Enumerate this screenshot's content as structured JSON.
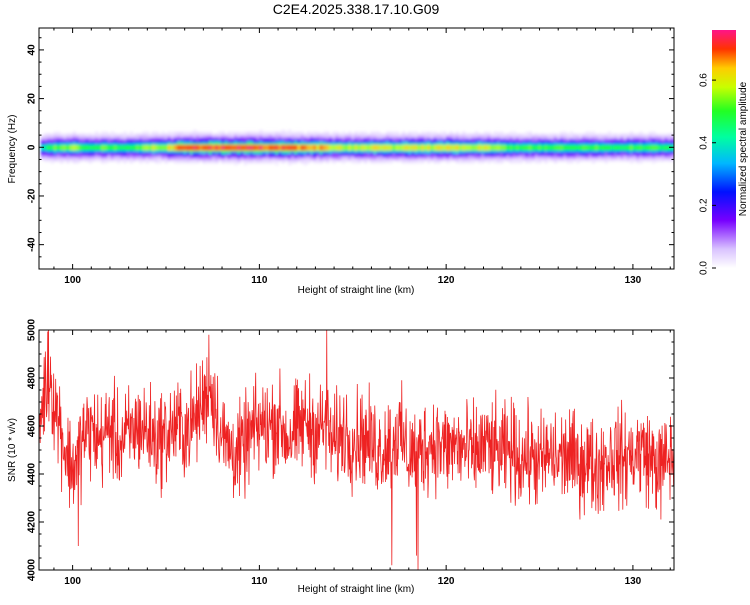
{
  "title": "C2E4.2025.338.17.10.G09",
  "colors": {
    "snr_line": "#ee2222",
    "axis": "#000000",
    "background": "#ffffff"
  },
  "chart_data": [
    {
      "type": "heatmap",
      "xlabel": "Height of straight line (km)",
      "ylabel": "Frequency (Hz)",
      "xlim": [
        98.2,
        132.2
      ],
      "ylim": [
        -50,
        49
      ],
      "xticks": [
        100,
        110,
        120,
        130
      ],
      "xtick_labels": [
        "100",
        "110",
        "120",
        "130"
      ],
      "yticks": [
        -40,
        -20,
        0,
        20,
        40
      ],
      "ytick_labels": [
        "-40",
        "-20",
        "0",
        "20",
        "40"
      ],
      "band_center_hz": 0,
      "band_halfwidth_hz": 3,
      "profile_x": [
        98.3,
        98.8,
        100,
        101,
        102,
        103,
        104,
        105,
        106,
        107,
        108,
        109,
        110,
        111,
        112,
        113,
        114,
        115,
        116,
        117,
        118,
        119,
        120,
        121,
        122,
        123,
        124,
        125,
        126,
        127,
        128,
        129,
        130,
        131,
        132
      ],
      "profile_amp": [
        0.35,
        0.5,
        0.55,
        0.5,
        0.52,
        0.48,
        0.55,
        0.58,
        0.7,
        0.72,
        0.7,
        0.73,
        0.72,
        0.7,
        0.68,
        0.66,
        0.6,
        0.55,
        0.6,
        0.58,
        0.58,
        0.58,
        0.6,
        0.58,
        0.58,
        0.52,
        0.5,
        0.5,
        0.5,
        0.5,
        0.5,
        0.48,
        0.5,
        0.5,
        0.45
      ],
      "colorbar": {
        "label": "Normalized spectral amplitude",
        "range": [
          0,
          0.76
        ],
        "ticks": [
          0.0,
          0.2,
          0.4,
          0.6
        ],
        "tick_labels": [
          "0.0",
          "0.2",
          "0.4",
          "0.6"
        ],
        "colormap": "rainbow"
      }
    },
    {
      "type": "line",
      "xlabel": "Height of straight line (km)",
      "ylabel": "SNR (10 * v/v)",
      "xlim": [
        98.2,
        132.2
      ],
      "ylim": [
        4000,
        5000
      ],
      "xticks": [
        100,
        110,
        120,
        130
      ],
      "xtick_labels": [
        "100",
        "110",
        "120",
        "130"
      ],
      "yticks": [
        4000,
        4200,
        4400,
        4600,
        4800,
        5000
      ],
      "ytick_labels": [
        "4000",
        "4200",
        "4400",
        "4600",
        "4800",
        "5000"
      ],
      "series": [
        {
          "color": "#ee2222",
          "x": [
            98.2,
            98.5,
            98.8,
            99.0,
            99.3,
            99.6,
            100.0,
            100.3,
            100.6,
            101.0,
            101.5,
            102.0,
            102.5,
            103.0,
            103.5,
            104.0,
            104.5,
            105.0,
            105.5,
            106.0,
            106.5,
            107.0,
            107.3,
            107.6,
            108.0,
            108.5,
            109.0,
            109.5,
            110.0,
            110.5,
            111.0,
            111.5,
            112.0,
            112.5,
            113.0,
            113.5,
            114.0,
            114.5,
            115.0,
            115.5,
            116.0,
            116.5,
            117.0,
            117.5,
            118.0,
            118.5,
            119.0,
            119.5,
            120.0,
            120.5,
            121.0,
            121.5,
            122.0,
            122.5,
            123.0,
            123.5,
            124.0,
            124.5,
            125.0,
            125.5,
            126.0,
            126.5,
            127.0,
            127.5,
            128.0,
            128.5,
            129.0,
            129.5,
            130.0,
            130.5,
            131.0,
            131.5,
            132.0,
            132.2
          ],
          "y": [
            4600,
            4750,
            4820,
            4700,
            4620,
            4500,
            4420,
            4480,
            4560,
            4580,
            4540,
            4600,
            4520,
            4560,
            4600,
            4580,
            4540,
            4560,
            4600,
            4580,
            4620,
            4700,
            4760,
            4700,
            4550,
            4500,
            4480,
            4560,
            4600,
            4600,
            4620,
            4550,
            4580,
            4620,
            4580,
            4600,
            4520,
            4580,
            4540,
            4560,
            4520,
            4500,
            4540,
            4560,
            4480,
            4500,
            4520,
            4540,
            4500,
            4520,
            4500,
            4480,
            4520,
            4500,
            4480,
            4500,
            4460,
            4480,
            4440,
            4480,
            4460,
            4480,
            4440,
            4460,
            4420,
            4460,
            4480,
            4460,
            4480,
            4500,
            4460,
            4420,
            4480,
            4450
          ],
          "noise_halfwidth": 180,
          "spikes": [
            {
              "x": 98.7,
              "y": 5000
            },
            {
              "x": 100.3,
              "y": 4100
            },
            {
              "x": 107.3,
              "y": 4980
            },
            {
              "x": 113.6,
              "y": 5000
            },
            {
              "x": 117.1,
              "y": 4020
            },
            {
              "x": 118.5,
              "y": 4000
            },
            {
              "x": 118.4,
              "y": 4060
            }
          ]
        }
      ]
    }
  ]
}
